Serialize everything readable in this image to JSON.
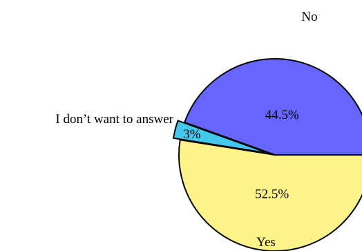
{
  "chart_data": {
    "type": "pie",
    "title": "",
    "slices": [
      {
        "label": "No",
        "value": 44.5,
        "value_label": "44.5%",
        "color": "#6666ff",
        "exploded": false
      },
      {
        "label": "I don’t want to answer",
        "value": 3,
        "value_label": "3%",
        "color": "#44c8ee",
        "exploded": true
      },
      {
        "label": "Yes",
        "value": 52.5,
        "value_label": "52.5%",
        "color": "#fff48a",
        "exploded": false
      }
    ],
    "start_angle_deg": 0,
    "direction": "counterclockwise",
    "legend": "none"
  }
}
